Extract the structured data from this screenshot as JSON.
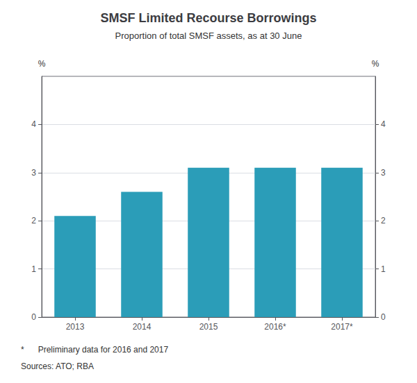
{
  "chart_data": {
    "type": "bar",
    "title": "SMSF Limited Recourse Borrowings",
    "subtitle": "Proportion of total SMSF assets, as at 30 June",
    "categories": [
      "2013",
      "2014",
      "2015",
      "2016*",
      "2017*"
    ],
    "values": [
      2.1,
      2.6,
      3.1,
      3.1,
      3.1
    ],
    "color": "#2b9db8",
    "ylabel": "%",
    "y2label": "%",
    "ylim": [
      0,
      5
    ],
    "yticks": [
      0,
      1,
      2,
      3,
      4
    ],
    "y2lim": [
      0,
      5
    ],
    "y2ticks": [
      0,
      1,
      2,
      3,
      4
    ],
    "grid": true,
    "annotations": [
      "*      Preliminary data for 2016 and 2017",
      "Sources: ATO; RBA"
    ]
  }
}
